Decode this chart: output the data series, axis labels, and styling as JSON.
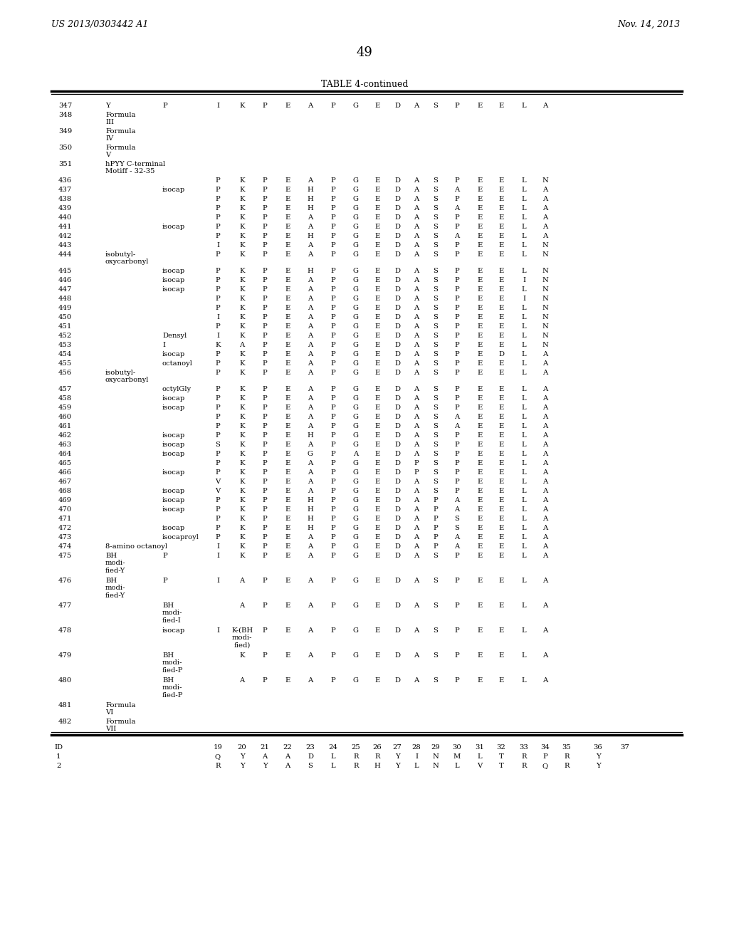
{
  "header_left": "US 2013/0303442 A1",
  "header_right": "Nov. 14, 2013",
  "page_number": "49",
  "table_title": "TABLE 4-continued",
  "bg": "#ffffff"
}
